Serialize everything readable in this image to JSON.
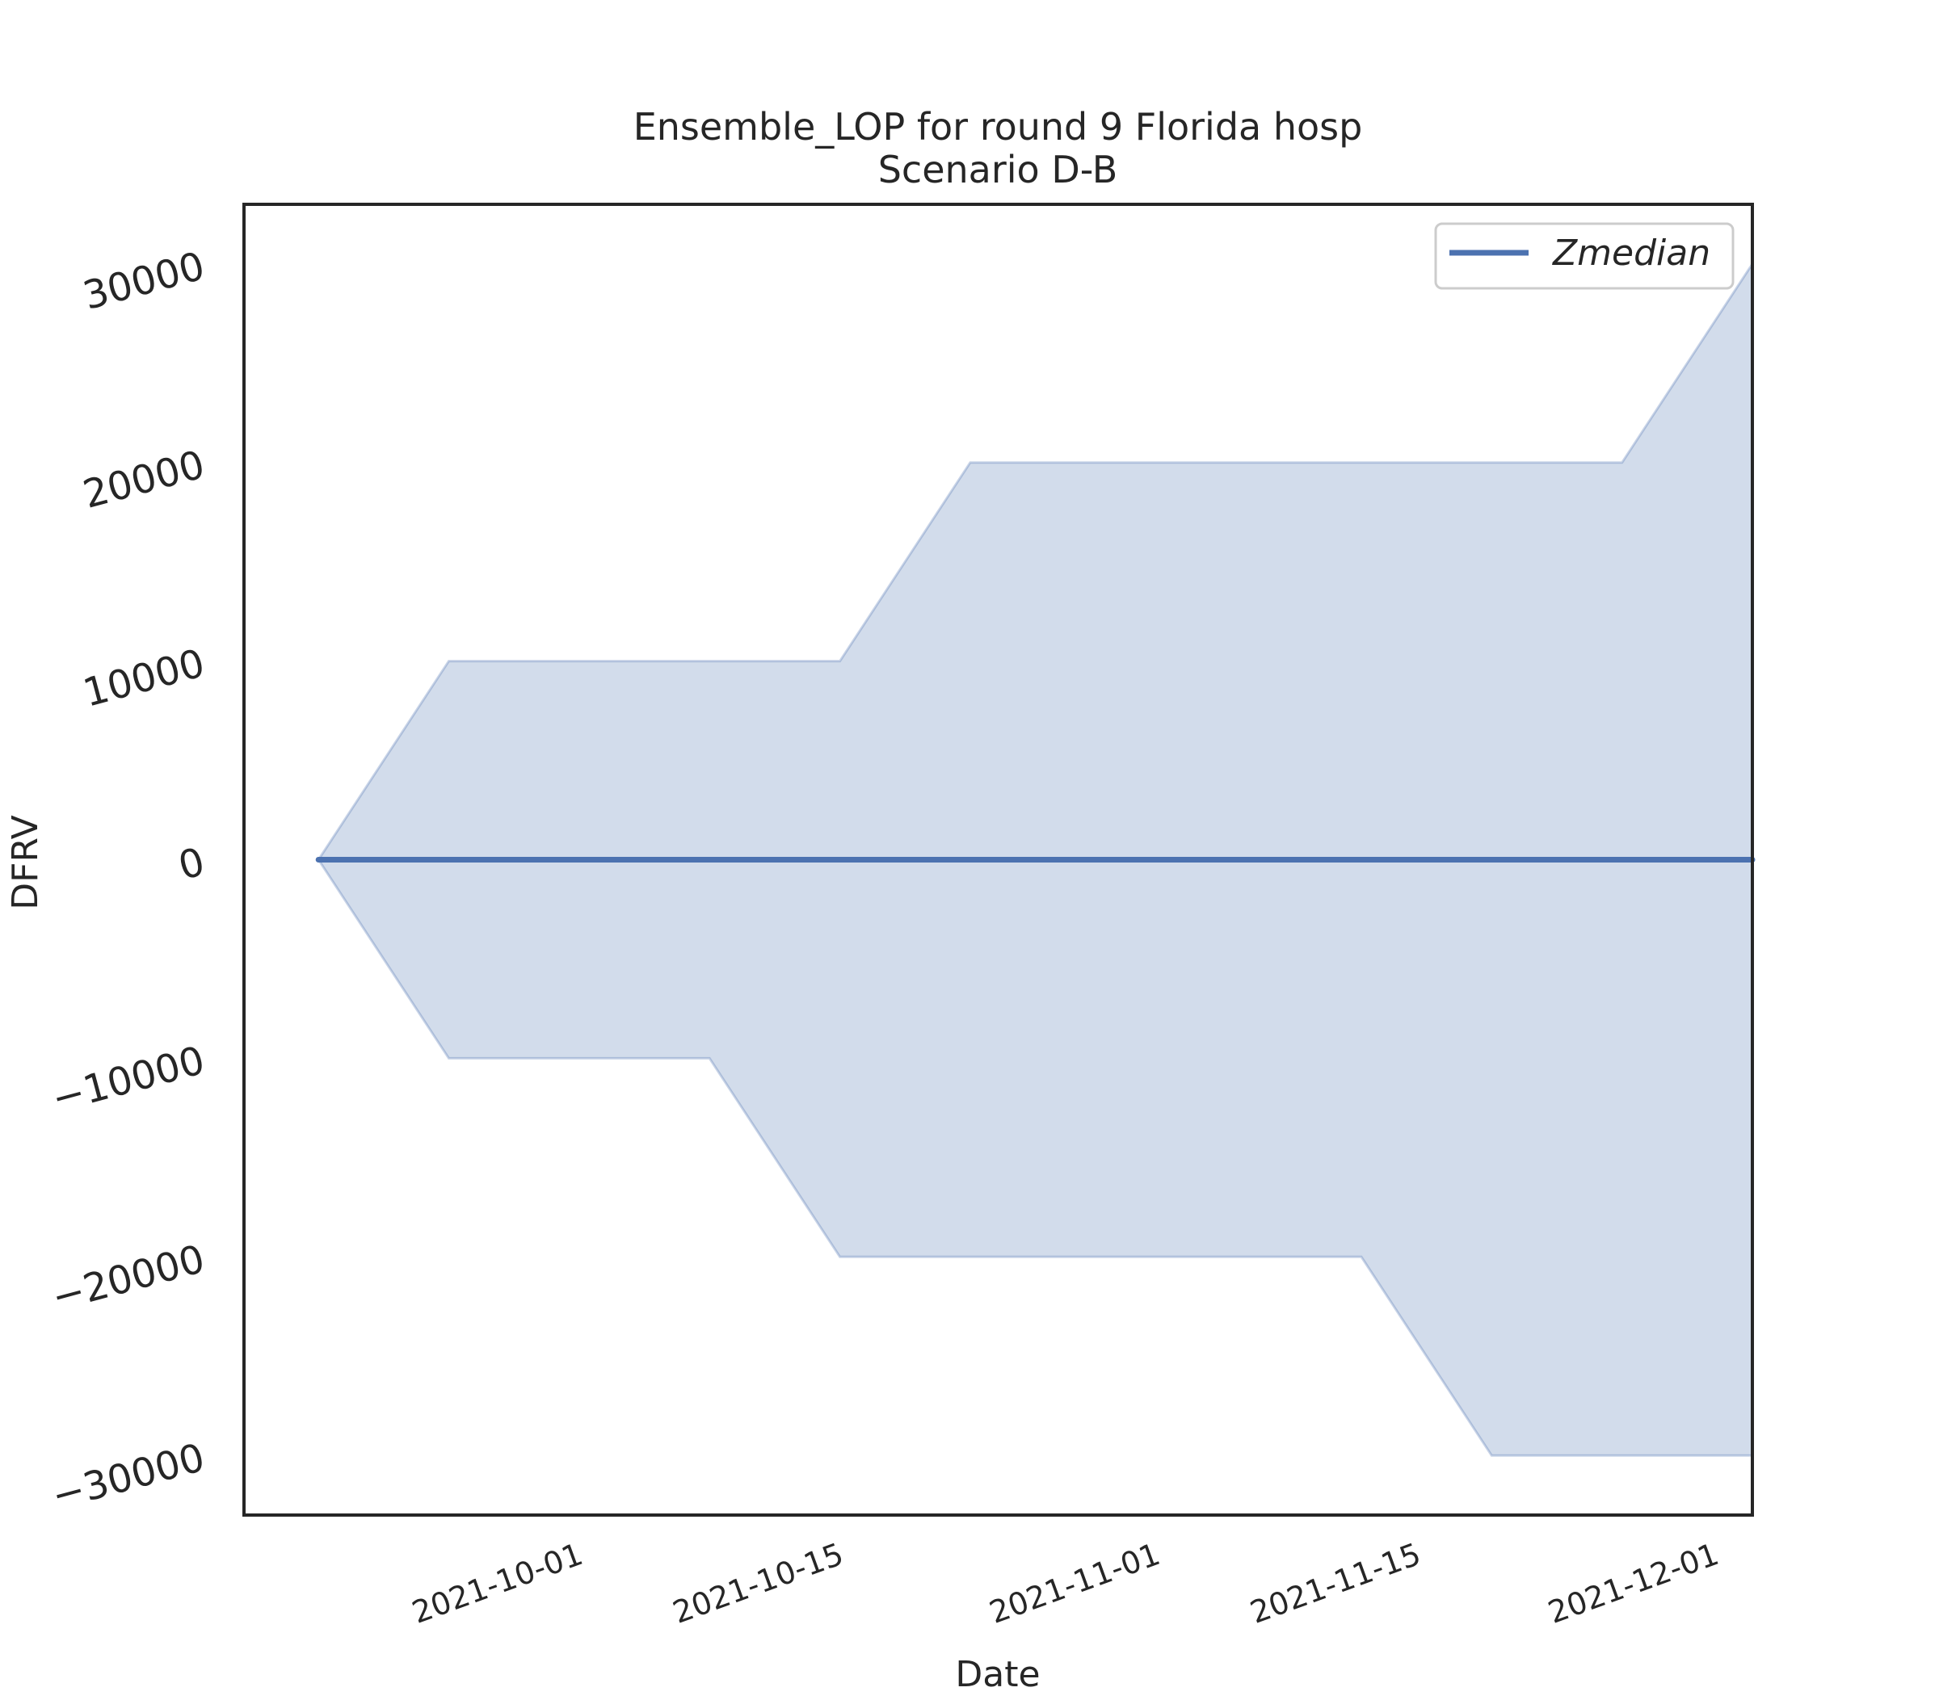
{
  "chart_data": {
    "type": "area",
    "title": "Ensemble_LOP for round 9 Florida hosp",
    "subtitle": "Scenario D-B",
    "xlabel": "Date",
    "ylabel": "DFRV",
    "x_tick_labels": [
      "2021-10-01",
      "2021-10-15",
      "2021-11-01",
      "2021-11-15",
      "2021-12-01"
    ],
    "y_tick_labels": [
      "30000",
      "20000",
      "10000",
      "0",
      "−10000",
      "−20000",
      "−30000"
    ],
    "y_ticks": [
      30000,
      20000,
      10000,
      0,
      -10000,
      -20000,
      -30000
    ],
    "ylim": [
      -33000,
      33000
    ],
    "xlim": [
      "2021-09-14",
      "2021-12-04"
    ],
    "grid": false,
    "legend_position": "top-right",
    "x": [
      "2021-09-18",
      "2021-09-25",
      "2021-10-02",
      "2021-10-09",
      "2021-10-16",
      "2021-10-23",
      "2021-10-30",
      "2021-11-06",
      "2021-11-13",
      "2021-11-20",
      "2021-11-27",
      "2021-12-04"
    ],
    "series": [
      {
        "name": "Zmedian",
        "color": "#4c72b0",
        "values": [
          0,
          0,
          0,
          0,
          0,
          0,
          0,
          0,
          0,
          0,
          0,
          0
        ]
      }
    ],
    "band": {
      "color": "#4c72b0",
      "lower": [
        0,
        -10000,
        -10000,
        -10000,
        -20000,
        -20000,
        -20000,
        -20000,
        -20000,
        -30000,
        -30000,
        -30000
      ],
      "upper": [
        0,
        10000,
        10000,
        10000,
        10000,
        20000,
        20000,
        20000,
        20000,
        20000,
        20000,
        30000
      ]
    }
  }
}
